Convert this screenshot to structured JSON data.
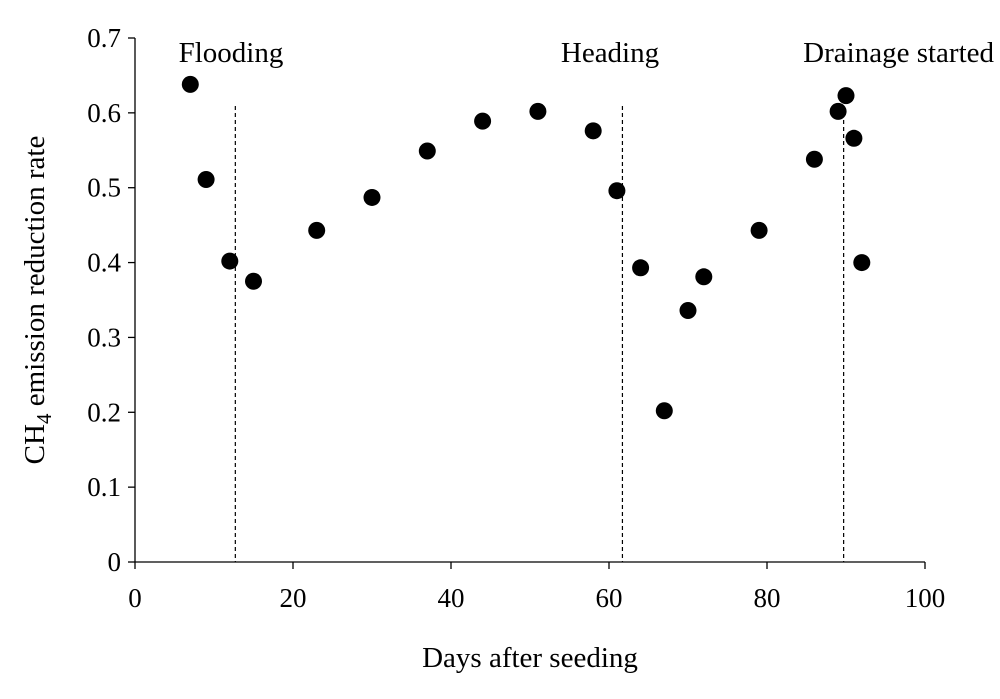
{
  "chart_data": {
    "type": "scatter",
    "title": "",
    "xlabel": "Days after seeding",
    "ylabel": {
      "prefix": "CH",
      "subscript": "4",
      "suffix": " emission reduction rate"
    },
    "xlim": [
      0,
      100
    ],
    "ylim": [
      0,
      0.7
    ],
    "x_ticks": [
      0,
      20,
      40,
      60,
      80,
      100
    ],
    "y_ticks": [
      0,
      0.1,
      0.2,
      0.3,
      0.4,
      0.5,
      0.6,
      0.7
    ],
    "x_tick_labels": [
      "0",
      "20",
      "40",
      "60",
      "80",
      "100"
    ],
    "y_tick_labels": [
      "0",
      "0.1",
      "0.2",
      "0.3",
      "0.4",
      "0.5",
      "0.6",
      "0.7"
    ],
    "grid": false,
    "series": [
      {
        "name": "CH4 emission reduction rate",
        "color": "#000000",
        "x": [
          7,
          9,
          12,
          15,
          23,
          30,
          37,
          44,
          51,
          58,
          61,
          64,
          67,
          70,
          72,
          79,
          86,
          89,
          90,
          91,
          92
        ],
        "y": [
          0.638,
          0.511,
          0.402,
          0.375,
          0.443,
          0.487,
          0.549,
          0.589,
          0.602,
          0.576,
          0.496,
          0.393,
          0.202,
          0.336,
          0.381,
          0.443,
          0.538,
          0.602,
          0.623,
          0.566,
          0.4
        ]
      }
    ],
    "annotations": [
      {
        "label": "Flooding",
        "x": 12.7
      },
      {
        "label": "Heading",
        "x": 61.7
      },
      {
        "label": "Drainage started",
        "x": 89.7
      }
    ]
  }
}
